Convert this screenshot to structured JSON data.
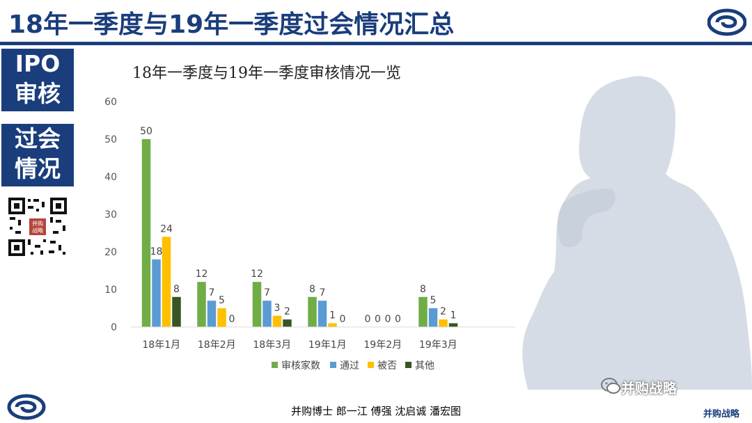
{
  "header": {
    "title": "18年一季度与19年一季度过会情况汇总"
  },
  "sidebar": {
    "box1": [
      "IPO",
      "审核"
    ],
    "box2": [
      "过会",
      "情况"
    ],
    "qr_label": "并购战略"
  },
  "chart_data": {
    "type": "bar",
    "title": "18年一季度与19年一季度审核情况一览",
    "categories": [
      "18年1月",
      "18年2月",
      "18年3月",
      "19年1月",
      "19年2月",
      "19年3月"
    ],
    "series": [
      {
        "name": "审核家数",
        "color": "#70ad47",
        "values": [
          50,
          12,
          12,
          8,
          0,
          8
        ]
      },
      {
        "name": "通过",
        "color": "#5b9bd5",
        "values": [
          18,
          7,
          7,
          7,
          0,
          5
        ]
      },
      {
        "name": "被否",
        "color": "#ffc000",
        "values": [
          24,
          5,
          3,
          1,
          0,
          2
        ]
      },
      {
        "name": "其他",
        "color": "#375623",
        "values": [
          8,
          0,
          2,
          0,
          0,
          1
        ]
      }
    ],
    "ylim": [
      0,
      60
    ],
    "yticks": [
      0,
      10,
      20,
      30,
      40,
      50,
      60
    ],
    "grid": false,
    "legend": "bottom"
  },
  "footer": {
    "authors": "并购博士 郎一江 傅强 沈启诚 潘宏图",
    "brand": "并购战略",
    "brand_small": "并购战略"
  },
  "colors": {
    "primary": "#1a3d7c",
    "silhouette": "#d6dce5"
  }
}
